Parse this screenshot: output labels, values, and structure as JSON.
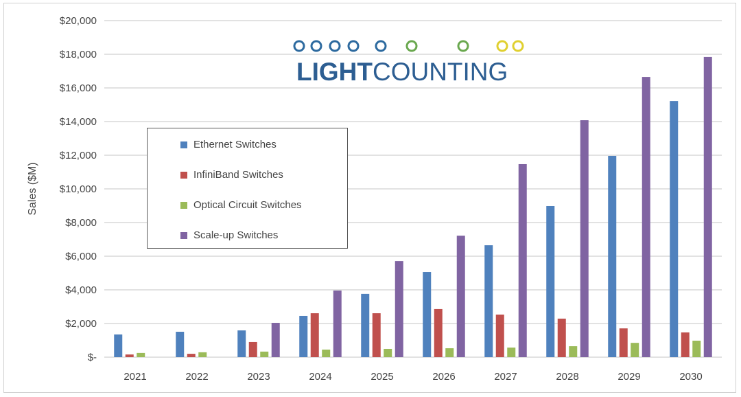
{
  "chart_data": {
    "type": "bar",
    "title": "",
    "xlabel": "",
    "ylabel": "Sales ($M)",
    "ylim": [
      0,
      20000
    ],
    "yticks": [
      0,
      2000,
      4000,
      6000,
      8000,
      10000,
      12000,
      14000,
      16000,
      18000,
      20000
    ],
    "ytick_labels": [
      "$-",
      "$2,000",
      "$4,000",
      "$6,000",
      "$8,000",
      "$10,000",
      "$12,000",
      "$14,000",
      "$16,000",
      "$18,000",
      "$20,000"
    ],
    "grid": "horizontal",
    "legend_placement": "upper-left",
    "categories": [
      "2021",
      "2022",
      "2023",
      "2024",
      "2025",
      "2026",
      "2027",
      "2028",
      "2029",
      "2030"
    ],
    "series": [
      {
        "name": "Ethernet Switches",
        "color": "#4f81bd",
        "values": [
          1350,
          1510,
          1590,
          2450,
          3760,
          5060,
          6650,
          8980,
          11960,
          15220
        ]
      },
      {
        "name": "InfiniBand Switches",
        "color": "#c0504d",
        "values": [
          160,
          200,
          900,
          2610,
          2610,
          2860,
          2530,
          2290,
          1710,
          1470
        ]
      },
      {
        "name": "Optical Circuit Switches",
        "color": "#9bbb59",
        "values": [
          250,
          290,
          330,
          450,
          490,
          530,
          570,
          650,
          850,
          980
        ]
      },
      {
        "name": "Scale-up Switches",
        "color": "#8064a2",
        "values": [
          0,
          0,
          2040,
          3960,
          5710,
          7220,
          11470,
          14080,
          16650,
          17840
        ]
      }
    ]
  },
  "logo": {
    "text_bold": "LIGHT",
    "text_regular": "COUNTING",
    "colors": [
      "#2d6a9f",
      "#6aa84f",
      "#e0d030"
    ]
  }
}
